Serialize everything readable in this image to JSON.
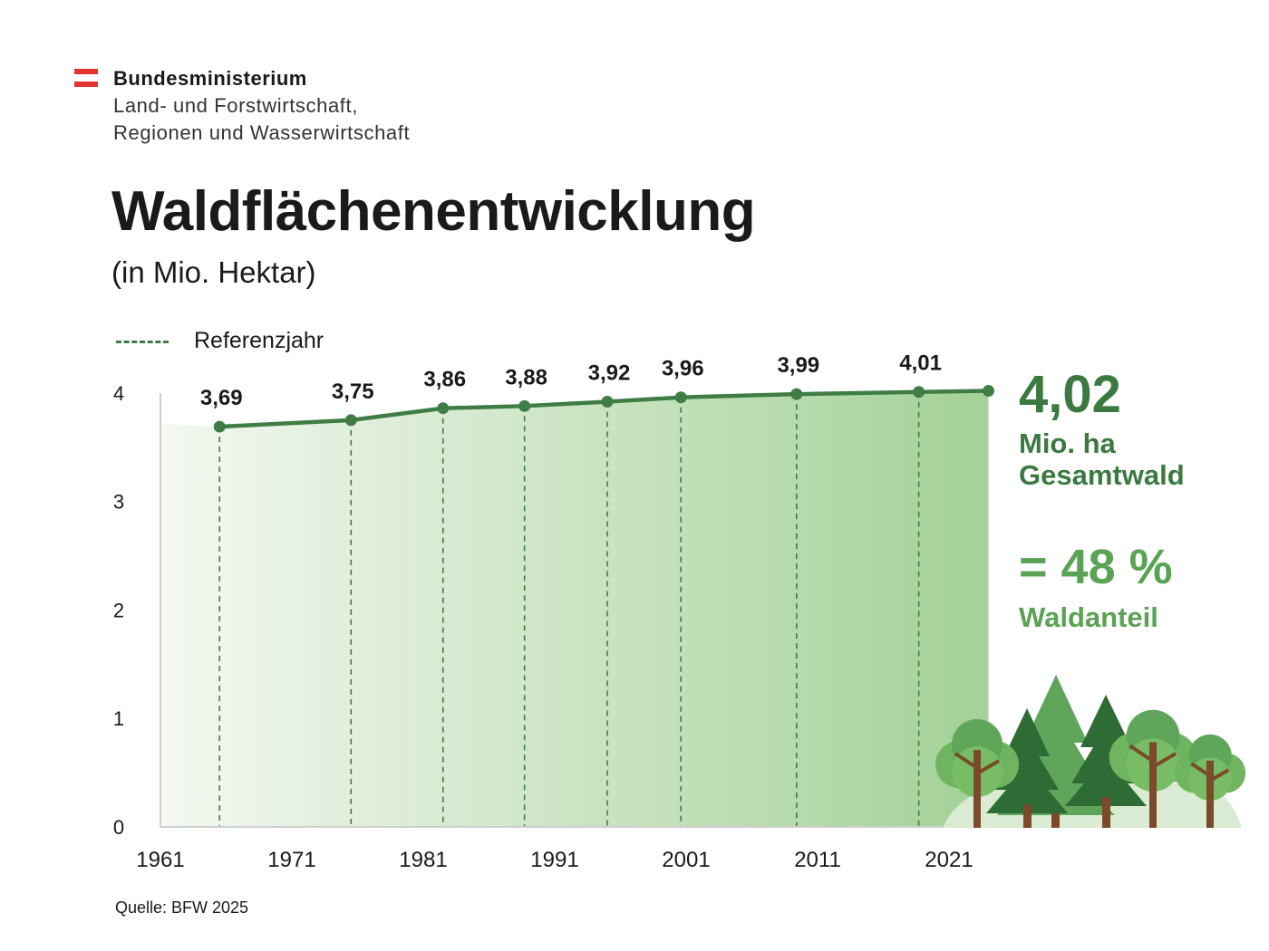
{
  "header": {
    "org_line1": "Bundesministerium",
    "org_line2": "Land- und Forstwirtschaft,",
    "org_line3": "Regionen und Wasserwirtschaft",
    "logo_icon": "austria-flag-icon",
    "logo_colors": [
      "#e3342f",
      "#ffffff",
      "#e3342f"
    ]
  },
  "title": "Waldflächenentwicklung",
  "subtitle": "(in Mio. Hektar)",
  "legend": {
    "label": "Referenzjahr",
    "style": "dashed",
    "color": "#3f7d45"
  },
  "kpi": {
    "value": "4,02",
    "unit_line1": "Mio. ha",
    "unit_line2": "Gesamtwald",
    "share": "= 48 %",
    "share_label": "Waldanteil"
  },
  "source": "Quelle: BFW 2025",
  "decoration": {
    "icon": "forest-trees-icon"
  },
  "colors": {
    "line": "#3f7d45",
    "point": "#3f7d45",
    "area_start": "#f4f8f1",
    "area_end": "#a3d197",
    "kpi_dark": "#3a7a40",
    "kpi_light": "#5aa354"
  },
  "chart_data": {
    "type": "area",
    "x": [
      1965.5,
      1975.5,
      1982.5,
      1988.7,
      1995,
      2000.6,
      2009.4,
      2018.7,
      2024
    ],
    "y": [
      3.69,
      3.75,
      3.86,
      3.88,
      3.92,
      3.96,
      3.99,
      4.01,
      4.02
    ],
    "data_labels": [
      "3,69",
      "3,75",
      "3,86",
      "3,88",
      "3,92",
      "3,96",
      "3,99",
      "4,01",
      ""
    ],
    "reference_years_marked": true,
    "xlim": [
      1961,
      2025
    ],
    "ylim": [
      0,
      4.25
    ],
    "x_ticks": [
      1961,
      1971,
      1981,
      1991,
      2001,
      2011,
      2021
    ],
    "x_tick_labels": [
      "1961",
      "1971",
      "1981",
      "1991",
      "2001",
      "2011",
      "2021"
    ],
    "y_ticks": [
      0,
      1,
      2,
      3,
      4
    ],
    "y_tick_labels": [
      "0",
      "1",
      "2",
      "3",
      "4"
    ],
    "grid": false,
    "legend_position": "top-left"
  }
}
